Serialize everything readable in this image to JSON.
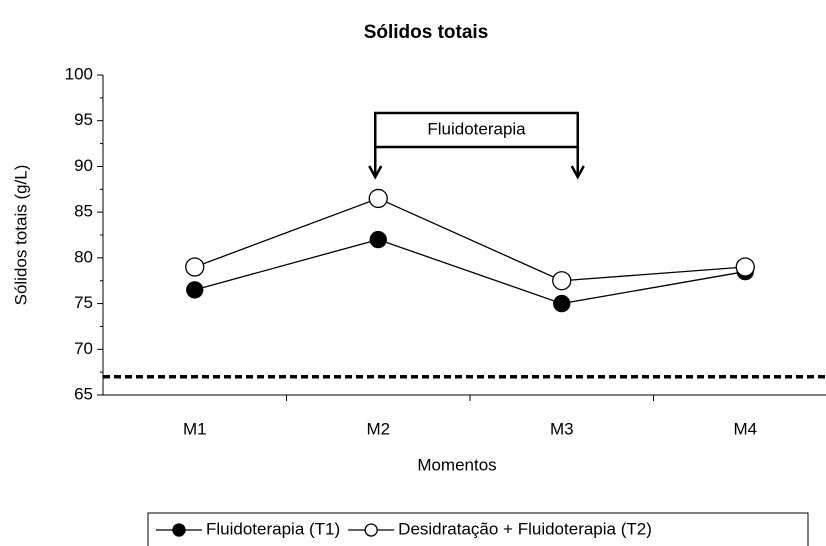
{
  "chart_data": {
    "type": "line",
    "title": "Sólidos totais",
    "x_label": "Momentos",
    "y_label": "Sólidos totais (g/L)",
    "categories": [
      "M1",
      "M2",
      "M3",
      "M4"
    ],
    "series": [
      {
        "name": "Fluidoterapia (T1)",
        "color": "#000000",
        "marker": "filled",
        "values": [
          76.5,
          82,
          75,
          78.5
        ]
      },
      {
        "name": "Desidratação + Fluidoterapia (T2)",
        "color": "#000000",
        "marker": "open",
        "values": [
          79,
          86.5,
          77.5,
          79
        ]
      }
    ],
    "ylim": [
      65,
      100
    ],
    "yticks": [
      65,
      70,
      75,
      80,
      85,
      90,
      95,
      100
    ],
    "reference_line": 67,
    "annotation": {
      "text": "Fluidoterapia",
      "from": "M2",
      "to": "M3"
    },
    "legend": "bottom"
  }
}
